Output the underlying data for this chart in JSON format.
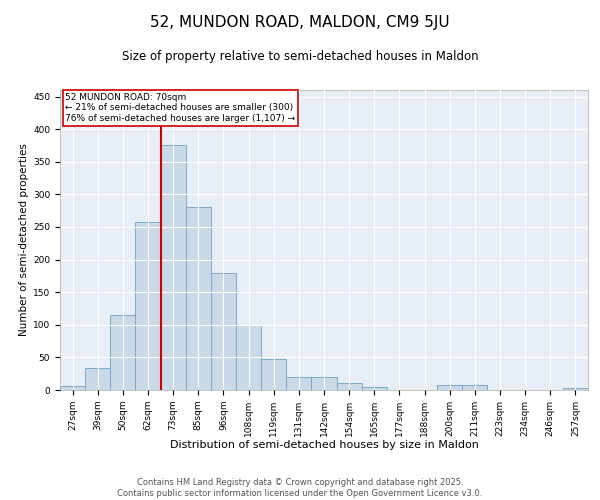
{
  "title": "52, MUNDON ROAD, MALDON, CM9 5JU",
  "subtitle": "Size of property relative to semi-detached houses in Maldon",
  "xlabel": "Distribution of semi-detached houses by size in Maldon",
  "ylabel": "Number of semi-detached properties",
  "categories": [
    "27sqm",
    "39sqm",
    "50sqm",
    "62sqm",
    "73sqm",
    "85sqm",
    "96sqm",
    "108sqm",
    "119sqm",
    "131sqm",
    "142sqm",
    "154sqm",
    "165sqm",
    "177sqm",
    "188sqm",
    "200sqm",
    "211sqm",
    "223sqm",
    "234sqm",
    "246sqm",
    "257sqm"
  ],
  "bar_heights": [
    6,
    33,
    115,
    258,
    375,
    280,
    180,
    100,
    47,
    20,
    20,
    10,
    5,
    0,
    0,
    7,
    7,
    0,
    0,
    0,
    3
  ],
  "bar_color": "#c9d9e8",
  "bar_edge_color": "#7aaac8",
  "property_label": "52 MUNDON ROAD: 70sqm",
  "annotation_line1": "← 21% of semi-detached houses are smaller (300)",
  "annotation_line2": "76% of semi-detached houses are larger (1,107) →",
  "vline_color": "#cc0000",
  "vline_x_index": 3.5,
  "annotation_box_color": "#ffffff",
  "annotation_box_edge_color": "#cc0000",
  "ylim": [
    0,
    460
  ],
  "yticks": [
    0,
    50,
    100,
    150,
    200,
    250,
    300,
    350,
    400,
    450
  ],
  "background_color": "#e8eef5",
  "footer_line1": "Contains HM Land Registry data © Crown copyright and database right 2025.",
  "footer_line2": "Contains public sector information licensed under the Open Government Licence v3.0.",
  "title_fontsize": 11,
  "subtitle_fontsize": 8.5,
  "xlabel_fontsize": 8,
  "ylabel_fontsize": 7.5,
  "tick_fontsize": 6.5,
  "annotation_fontsize": 6.5,
  "footer_fontsize": 6
}
